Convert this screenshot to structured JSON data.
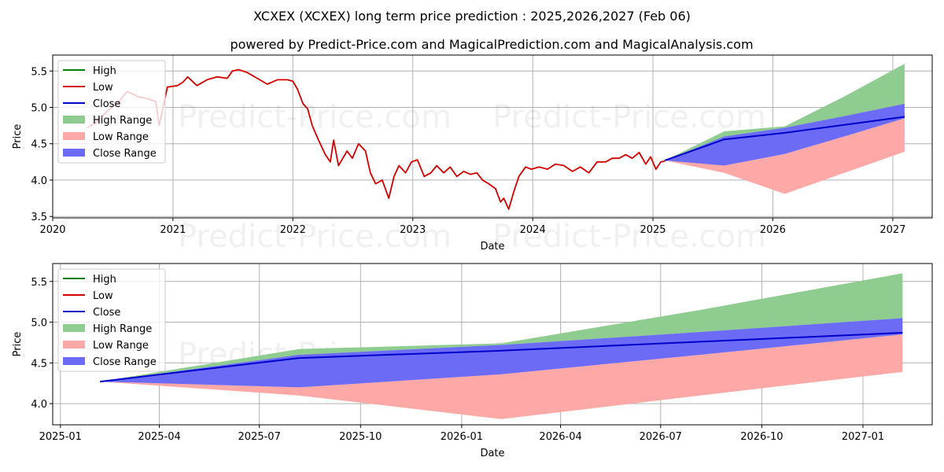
{
  "page": {
    "title": "XCXEX (XCXEX) long term price prediction : 2025,2026,2027 (Feb 06)",
    "subtitle": "powered by Predict-Price.com and MagicalPrediction.com and MagicalAnalysis.com",
    "watermark": "Predict-Price.com"
  },
  "colors": {
    "high": "#008000",
    "low": "#d40000",
    "close": "#0000cc",
    "high_range": "#8fcc8f",
    "low_range": "#ffa8a8",
    "close_range": "#6b6bf5",
    "grid": "#b0b0b0"
  },
  "legend": {
    "items": [
      {
        "label": "High",
        "kind": "line",
        "color_key": "high"
      },
      {
        "label": "Low",
        "kind": "line",
        "color_key": "low"
      },
      {
        "label": "Close",
        "kind": "line",
        "color_key": "close"
      },
      {
        "label": "High Range",
        "kind": "patch",
        "color_key": "high_range"
      },
      {
        "label": "Low Range",
        "kind": "patch",
        "color_key": "low_range"
      },
      {
        "label": "Close Range",
        "kind": "patch",
        "color_key": "close_range"
      }
    ],
    "placement": "upper-left"
  },
  "chart_data": [
    {
      "type": "line",
      "xlabel": "Date",
      "ylabel": "Price",
      "x_ticks": [
        "2020",
        "2021",
        "2022",
        "2023",
        "2024",
        "2025",
        "2026",
        "2027"
      ],
      "y_ticks": [
        "3.5",
        "4.0",
        "4.5",
        "5.0",
        "5.5"
      ],
      "xlim": [
        "2020-01-01",
        "2027-05-01"
      ],
      "ylim": [
        3.48,
        5.72
      ],
      "grid": true,
      "historical_low": {
        "x": [
          "2020-04-15",
          "2020-05-15",
          "2020-06-15",
          "2020-07-15",
          "2020-08-15",
          "2020-09-15",
          "2020-10-15",
          "2020-11-10",
          "2020-11-20",
          "2020-12-15",
          "2021-01-15",
          "2021-02-01",
          "2021-02-15",
          "2021-03-15",
          "2021-04-15",
          "2021-05-15",
          "2021-06-15",
          "2021-07-01",
          "2021-07-20",
          "2021-08-15",
          "2021-09-15",
          "2021-10-15",
          "2021-11-15",
          "2021-12-15",
          "2022-01-01",
          "2022-01-15",
          "2022-02-01",
          "2022-02-15",
          "2022-03-01",
          "2022-03-20",
          "2022-04-10",
          "2022-04-25",
          "2022-05-05",
          "2022-05-20",
          "2022-06-15",
          "2022-07-01",
          "2022-07-20",
          "2022-08-10",
          "2022-08-25",
          "2022-09-10",
          "2022-09-30",
          "2022-10-20",
          "2022-11-05",
          "2022-11-20",
          "2022-12-10",
          "2022-12-28",
          "2023-01-15",
          "2023-02-05",
          "2023-02-25",
          "2023-03-15",
          "2023-04-05",
          "2023-04-25",
          "2023-05-15",
          "2023-06-05",
          "2023-06-25",
          "2023-07-15",
          "2023-08-01",
          "2023-08-20",
          "2023-09-10",
          "2023-09-25",
          "2023-10-05",
          "2023-10-20",
          "2023-11-05",
          "2023-11-20",
          "2023-12-10",
          "2023-12-28",
          "2024-01-20",
          "2024-02-15",
          "2024-03-10",
          "2024-04-05",
          "2024-05-01",
          "2024-05-25",
          "2024-06-20",
          "2024-07-15",
          "2024-08-10",
          "2024-08-30",
          "2024-09-20",
          "2024-10-10",
          "2024-10-30",
          "2024-11-20",
          "2024-12-10",
          "2024-12-25",
          "2025-01-10",
          "2025-01-25",
          "2025-02-06"
        ],
        "y": [
          4.72,
          4.8,
          4.95,
          5.05,
          5.22,
          5.15,
          5.12,
          5.08,
          4.75,
          5.28,
          5.3,
          5.35,
          5.42,
          5.3,
          5.38,
          5.42,
          5.4,
          5.5,
          5.52,
          5.48,
          5.4,
          5.32,
          5.38,
          5.38,
          5.36,
          5.25,
          5.05,
          4.98,
          4.75,
          4.55,
          4.35,
          4.25,
          4.55,
          4.2,
          4.4,
          4.3,
          4.5,
          4.4,
          4.1,
          3.95,
          4.0,
          3.75,
          4.05,
          4.2,
          4.1,
          4.25,
          4.28,
          4.05,
          4.1,
          4.2,
          4.1,
          4.18,
          4.05,
          4.12,
          4.08,
          4.1,
          4.0,
          3.95,
          3.88,
          3.7,
          3.75,
          3.6,
          3.85,
          4.05,
          4.18,
          4.15,
          4.18,
          4.15,
          4.22,
          4.2,
          4.12,
          4.18,
          4.1,
          4.25,
          4.25,
          4.3,
          4.3,
          4.35,
          4.3,
          4.38,
          4.22,
          4.32,
          4.15,
          4.25,
          4.26
        ]
      },
      "prediction": {
        "x": [
          "2025-02-06",
          "2025-08-06",
          "2026-02-06",
          "2026-08-06",
          "2027-02-06"
        ],
        "close": [
          4.27,
          4.56,
          4.65,
          4.76,
          4.87
        ],
        "close_range_high": [
          4.27,
          4.6,
          4.72,
          4.88,
          5.05
        ],
        "close_range_low": [
          4.27,
          4.2,
          4.36,
          4.6,
          4.85
        ],
        "high_range_high": [
          4.27,
          4.67,
          4.74,
          5.15,
          5.6
        ],
        "low_range_low": [
          4.27,
          4.1,
          3.81,
          4.1,
          4.39
        ]
      }
    },
    {
      "type": "line",
      "xlabel": "Date",
      "ylabel": "Price",
      "x_ticks": [
        "2025-01",
        "2025-04",
        "2025-07",
        "2025-10",
        "2026-01",
        "2026-04",
        "2026-07",
        "2026-10",
        "2027-01"
      ],
      "y_ticks": [
        "4.0",
        "4.5",
        "5.0",
        "5.5"
      ],
      "xlim": [
        "2024-12-25",
        "2027-03-05"
      ],
      "ylim": [
        3.74,
        5.72
      ],
      "grid": true,
      "prediction": {
        "x": [
          "2025-02-06",
          "2025-08-06",
          "2026-02-06",
          "2026-08-06",
          "2027-02-06"
        ],
        "close": [
          4.27,
          4.56,
          4.65,
          4.76,
          4.87
        ],
        "close_range_high": [
          4.27,
          4.6,
          4.72,
          4.88,
          5.05
        ],
        "close_range_low": [
          4.27,
          4.2,
          4.36,
          4.6,
          4.85
        ],
        "high_range_high": [
          4.27,
          4.67,
          4.74,
          5.15,
          5.6
        ],
        "low_range_low": [
          4.27,
          4.1,
          3.81,
          4.1,
          4.39
        ]
      }
    }
  ]
}
